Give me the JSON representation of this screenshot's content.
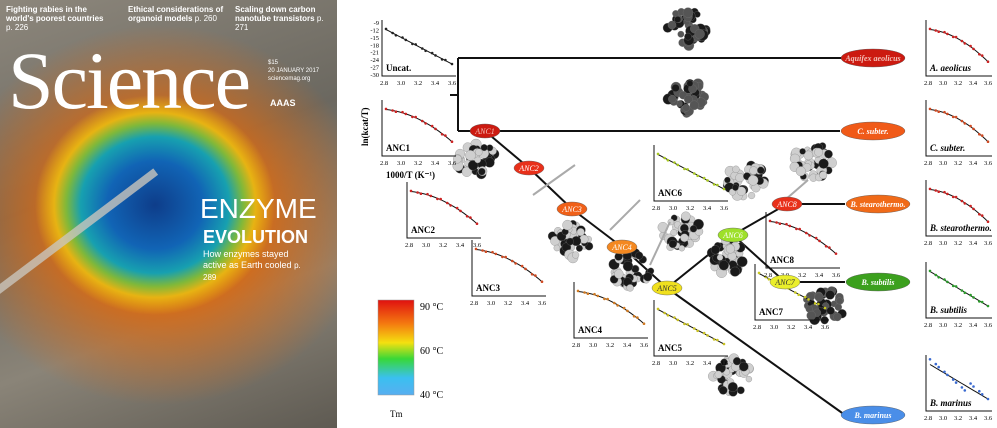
{
  "cover": {
    "teasers": [
      {
        "text": "Fighting rabies in the world's poorest countries",
        "page": "p. 226"
      },
      {
        "text": "Ethical considerations of organoid models",
        "page": "p. 260"
      },
      {
        "text": "Scaling down carbon nanotube transistors",
        "page": "p. 271"
      }
    ],
    "masthead": "Science",
    "price": "$15",
    "date": "20 JANUARY 2017",
    "url": "sciencemag.org",
    "publisher": "AAAS",
    "headline_1": "ENZYME",
    "headline_2": "EVOLUTION",
    "subhead": "How enzymes stayed active as Earth cooled",
    "subhead_page": "p. 289"
  },
  "nodes": [
    {
      "label": "Aquifex aeolicus",
      "color": "#cc1a10",
      "text_color": "#f4c0b8"
    },
    {
      "label": "ANC1",
      "color": "#cc1a10",
      "text_color": "#f4c0b8"
    },
    {
      "label": "ANC2",
      "color": "#e8301a",
      "text_color": "#ffffff"
    },
    {
      "label": "ANC3",
      "color": "#f06018",
      "text_color": "#ffffff"
    },
    {
      "label": "ANC4",
      "color": "#f48820",
      "text_color": "#ffffff"
    },
    {
      "label": "ANC5",
      "color": "#f0e01e",
      "text_color": "#333333"
    },
    {
      "label": "ANC6",
      "color": "#9ee02a",
      "text_color": "#ffffff"
    },
    {
      "label": "ANC7",
      "color": "#eaee2c",
      "text_color": "#333333"
    },
    {
      "label": "ANC8",
      "color": "#e8301a",
      "text_color": "#ffffff"
    },
    {
      "label": "C. subter.",
      "color": "#f05a18",
      "text_color": "#ffffff"
    },
    {
      "label": "B. stearothermo.",
      "color": "#f06a18",
      "text_color": "#ffffff"
    },
    {
      "label": "B. subtilis",
      "color": "#3ca01e",
      "text_color": "#ffffff"
    },
    {
      "label": "B. marinus",
      "color": "#4a8ee8",
      "text_color": "#ffffff"
    }
  ],
  "plots": [
    {
      "label": "Uncat.",
      "ymin": -30,
      "ymax": -9,
      "yticks": [
        "-9",
        "-12",
        "-15",
        "-18",
        "-21",
        "-24",
        "-27",
        "-30"
      ],
      "xticks": [
        "2.8",
        "3.0",
        "3.2",
        "3.4",
        "3.6"
      ],
      "marker_color": "#222222",
      "curve": "linear"
    },
    {
      "label": "ANC1",
      "ylabel": "ln(kcat/T)",
      "xlabel": "1000/T (K⁻¹)",
      "xticks": [
        "2.8",
        "3.0",
        "3.2",
        "3.4",
        "3.6"
      ],
      "marker_color": "#cc2222",
      "curve": "convex"
    },
    {
      "label": "ANC2",
      "xticks": [
        "2.8",
        "3.0",
        "3.2",
        "3.4",
        "3.6"
      ],
      "marker_color": "#cc2222",
      "curve": "convex"
    },
    {
      "label": "ANC3",
      "xticks": [
        "2.8",
        "3.0",
        "3.2",
        "3.4",
        "3.6"
      ],
      "marker_color": "#d04a22",
      "curve": "convex"
    },
    {
      "label": "ANC4",
      "xticks": [
        "2.8",
        "3.0",
        "3.2",
        "3.4",
        "3.6"
      ],
      "marker_color": "#d07a22",
      "curve": "convex"
    },
    {
      "label": "ANC5",
      "xticks": [
        "2.8",
        "3.0",
        "3.2",
        "3.4",
        "3.6"
      ],
      "marker_color": "#c8c020",
      "curve": "linear"
    },
    {
      "label": "ANC6",
      "xticks": [
        "2.8",
        "3.0",
        "3.2",
        "3.4",
        "3.6"
      ],
      "marker_color": "#a8c820",
      "curve": "linear"
    },
    {
      "label": "ANC7",
      "xticks": [
        "2.8",
        "3.0",
        "3.2",
        "3.4",
        "3.6"
      ],
      "marker_color": "#c8c820",
      "curve": "linear"
    },
    {
      "label": "ANC8",
      "xticks": [
        "2.8",
        "3.0",
        "3.2",
        "3.4",
        "3.6"
      ],
      "marker_color": "#cc2222",
      "curve": "convex"
    },
    {
      "label": "A. aeolicus",
      "xticks": [
        "2.8",
        "3.0",
        "3.2",
        "3.4",
        "3.6"
      ],
      "marker_color": "#cc2222",
      "curve": "convex"
    },
    {
      "label": "C. subter.",
      "xticks": [
        "2.8",
        "3.0",
        "3.2",
        "3.4",
        "3.6"
      ],
      "marker_color": "#d04a22",
      "curve": "convex"
    },
    {
      "label": "B. stearothermo.",
      "xticks": [
        "2.8",
        "3.0",
        "3.2",
        "3.4",
        "3.6"
      ],
      "marker_color": "#cc2222",
      "curve": "convex"
    },
    {
      "label": "B. subtilis",
      "xticks": [
        "2.8",
        "3.0",
        "3.2",
        "3.4",
        "3.6"
      ],
      "marker_color": "#2a9a2a",
      "curve": "linear"
    },
    {
      "label": "B. marinus",
      "xticks": [
        "2.8",
        "3.0",
        "3.2",
        "3.4",
        "3.6"
      ],
      "marker_color": "#3a6ad0",
      "curve": "linear_scatter"
    }
  ],
  "legend": {
    "title": "Tm",
    "top_label": "90 °C",
    "mid_label": "60 °C",
    "bottom_label": "40 °C",
    "colors": [
      "#e01010",
      "#f47a10",
      "#f4e010",
      "#38d838",
      "#3ac0f0",
      "#58aef0"
    ]
  }
}
